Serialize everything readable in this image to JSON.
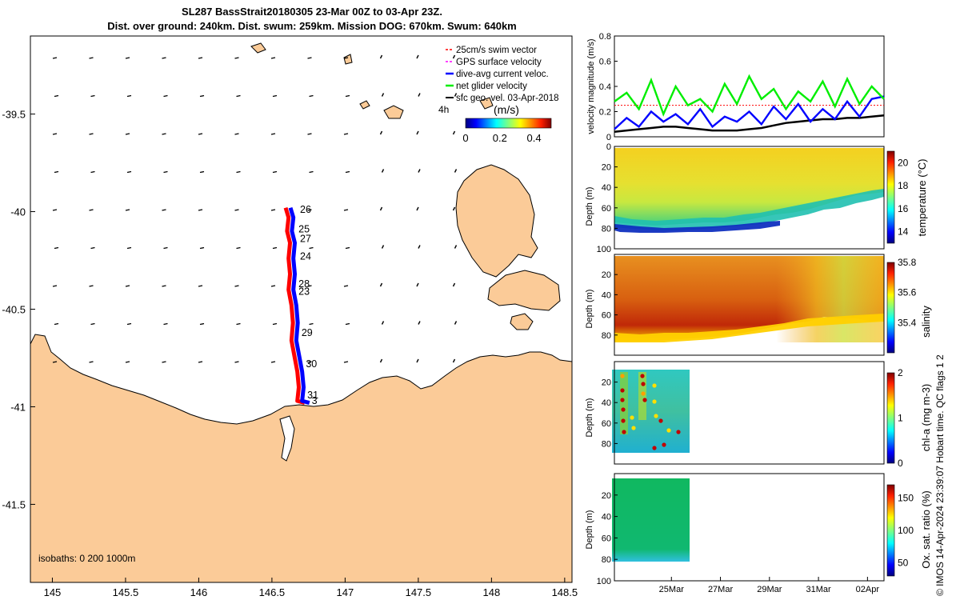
{
  "title": {
    "line1": "SL287 BassStrait20180305 23-Mar 00Z to 03-Apr 23Z.",
    "line2": "Dist. over ground: 240km. Dist. swum: 259km. Mission DOG: 670km. Swum: 640km"
  },
  "credit": "© IMOS 14-Apr-2024 23:39:07 Hobart time. QC flags 1  2",
  "colors": {
    "land": "#fbcb98",
    "track_red": "#ff0000",
    "track_blue": "#0000ff",
    "speed_green": "#00ee00",
    "swim_ref": "#ff0000",
    "gps_vel": "#ff00ff",
    "geo_vel": "#000000"
  },
  "map": {
    "xticks": [
      "145",
      "145.5",
      "146",
      "146.5",
      "147",
      "147.5",
      "148",
      "148.5"
    ],
    "xtick_values": [
      145,
      145.5,
      146,
      146.5,
      147,
      147.5,
      148,
      148.5
    ],
    "yticks": [
      "-39.5",
      "-40",
      "-40.5",
      "-41",
      "-41.5"
    ],
    "ytick_values": [
      -39.5,
      -40,
      -40.5,
      -41,
      -41.5
    ],
    "xlim": [
      144.85,
      148.55
    ],
    "ylim": [
      -41.9,
      -39.1
    ],
    "legend": [
      {
        "label": "25cm/s swim vector",
        "color": "#ff0000",
        "style": "dashed"
      },
      {
        "label": "GPS surface velocity",
        "color": "#ff00ff",
        "style": "dashed"
      },
      {
        "label": "dive-avg current veloc.",
        "color": "#0000ff",
        "style": "solid"
      },
      {
        "label": "net glider velocity",
        "color": "#00ee00",
        "style": "solid"
      },
      {
        "label": "sfc geo. vel. 03-Apr-2018",
        "color": "#000000",
        "style": "solid"
      }
    ],
    "time_step_label": "4h",
    "colorbar": {
      "label": "(m/s)",
      "ticks": [
        "0",
        "0.2",
        "0.4"
      ],
      "tick_values": [
        0,
        0.2,
        0.4
      ],
      "range": [
        0,
        0.5
      ]
    },
    "isobaths_label": "isobaths: 0   200  1000m",
    "day_labels": [
      {
        "text": "26",
        "lon": 146.67,
        "lat": -39.99
      },
      {
        "text": "25",
        "lon": 146.66,
        "lat": -40.09
      },
      {
        "text": "27",
        "lon": 146.67,
        "lat": -40.14
      },
      {
        "text": "24",
        "lon": 146.67,
        "lat": -40.23
      },
      {
        "text": "28",
        "lon": 146.66,
        "lat": -40.37
      },
      {
        "text": "23",
        "lon": 146.66,
        "lat": -40.41
      },
      {
        "text": "29",
        "lon": 146.68,
        "lat": -40.62
      },
      {
        "text": "30",
        "lon": 146.71,
        "lat": -40.78
      },
      {
        "text": "31",
        "lon": 146.72,
        "lat": -40.94
      },
      {
        "text": "3",
        "lon": 146.75,
        "lat": -40.97
      }
    ],
    "track": [
      [
        146.61,
        -39.98
      ],
      [
        146.63,
        -40.03
      ],
      [
        146.62,
        -40.1
      ],
      [
        146.64,
        -40.16
      ],
      [
        146.63,
        -40.24
      ],
      [
        146.64,
        -40.32
      ],
      [
        146.63,
        -40.4
      ],
      [
        146.65,
        -40.48
      ],
      [
        146.66,
        -40.57
      ],
      [
        146.65,
        -40.66
      ],
      [
        146.67,
        -40.74
      ],
      [
        146.69,
        -40.82
      ],
      [
        146.7,
        -40.9
      ],
      [
        146.69,
        -40.97
      ],
      [
        146.74,
        -40.98
      ]
    ]
  },
  "chart_data": [
    {
      "type": "line",
      "ylabel": "velocity magnitude (m/s)",
      "ylim": [
        0,
        0.8
      ],
      "yticks": [
        0,
        0.2,
        0.4,
        0.6,
        0.8
      ],
      "xlim": [
        0,
        11
      ],
      "x": [
        0,
        0.5,
        1,
        1.5,
        2,
        2.5,
        3,
        3.5,
        4,
        4.5,
        5,
        5.5,
        6,
        6.5,
        7,
        7.5,
        8,
        8.5,
        9,
        9.5,
        10,
        10.5,
        11
      ],
      "series": [
        {
          "name": "net glider velocity",
          "color": "#00ee00",
          "values": [
            0.28,
            0.35,
            0.22,
            0.45,
            0.18,
            0.4,
            0.25,
            0.3,
            0.2,
            0.42,
            0.26,
            0.48,
            0.3,
            0.38,
            0.22,
            0.36,
            0.28,
            0.44,
            0.24,
            0.46,
            0.26,
            0.4,
            0.3
          ]
        },
        {
          "name": "dive-avg current veloc.",
          "color": "#0000ff",
          "values": [
            0.06,
            0.15,
            0.08,
            0.2,
            0.12,
            0.18,
            0.1,
            0.22,
            0.08,
            0.16,
            0.12,
            0.2,
            0.1,
            0.24,
            0.14,
            0.26,
            0.12,
            0.22,
            0.14,
            0.28,
            0.16,
            0.3,
            0.32
          ]
        },
        {
          "name": "sfc geo. vel.",
          "color": "#000000",
          "values": [
            0.04,
            0.05,
            0.06,
            0.07,
            0.08,
            0.08,
            0.07,
            0.06,
            0.05,
            0.05,
            0.05,
            0.06,
            0.07,
            0.09,
            0.11,
            0.12,
            0.13,
            0.14,
            0.14,
            0.15,
            0.15,
            0.16,
            0.17
          ]
        },
        {
          "name": "25cm/s swim vector",
          "color": "#ff0000",
          "values": [
            0.25,
            0.25,
            0.25,
            0.25,
            0.25,
            0.25,
            0.25,
            0.25,
            0.25,
            0.25,
            0.25,
            0.25,
            0.25,
            0.25,
            0.25,
            0.25,
            0.25,
            0.25,
            0.25,
            0.25,
            0.25,
            0.25,
            0.25
          ]
        }
      ]
    },
    {
      "type": "heatmap",
      "variable": "temperature",
      "ylabel": "Depth (m)",
      "clabel": "temperature (°C)",
      "crange": [
        13,
        21
      ],
      "cticks": [
        "14",
        "16",
        "18",
        "20"
      ],
      "ctick_values": [
        14,
        16,
        18,
        20
      ],
      "yticks": [
        "0",
        "20",
        "40",
        "60",
        "80",
        "100"
      ],
      "xdays": [
        0,
        11
      ]
    },
    {
      "type": "heatmap",
      "variable": "salinity",
      "ylabel": "Depth (m)",
      "clabel": "salinity",
      "crange": [
        35.2,
        35.8
      ],
      "cticks": [
        "35.4",
        "35.6",
        "35.8"
      ],
      "ctick_values": [
        35.4,
        35.6,
        35.8
      ],
      "yticks": [
        "20",
        "40",
        "60",
        "80"
      ],
      "xdays": [
        0,
        11
      ]
    },
    {
      "type": "heatmap",
      "variable": "chl-a",
      "ylabel": "Depth (m)",
      "clabel": "chl-a (mg m-3)",
      "crange": [
        0,
        2
      ],
      "cticks": [
        "0",
        "1",
        "2"
      ],
      "ctick_values": [
        0,
        1,
        2
      ],
      "yticks": [
        "20",
        "40",
        "60",
        "80"
      ],
      "xdays": [
        0,
        2.6
      ]
    },
    {
      "type": "heatmap",
      "variable": "oxygen",
      "ylabel": "Depth (m)",
      "clabel": "Ox. sat. ratio (%)",
      "crange": [
        30,
        170
      ],
      "cticks": [
        "50",
        "100",
        "150"
      ],
      "ctick_values": [
        50,
        100,
        150
      ],
      "yticks": [
        "20",
        "40",
        "60",
        "80",
        "100"
      ],
      "xticks": [
        "25Mar",
        "27Mar",
        "29Mar",
        "31Mar",
        "02Apr"
      ],
      "xtick_values": [
        2,
        4,
        6,
        8,
        10
      ],
      "xdays": [
        0,
        2.6
      ]
    }
  ]
}
